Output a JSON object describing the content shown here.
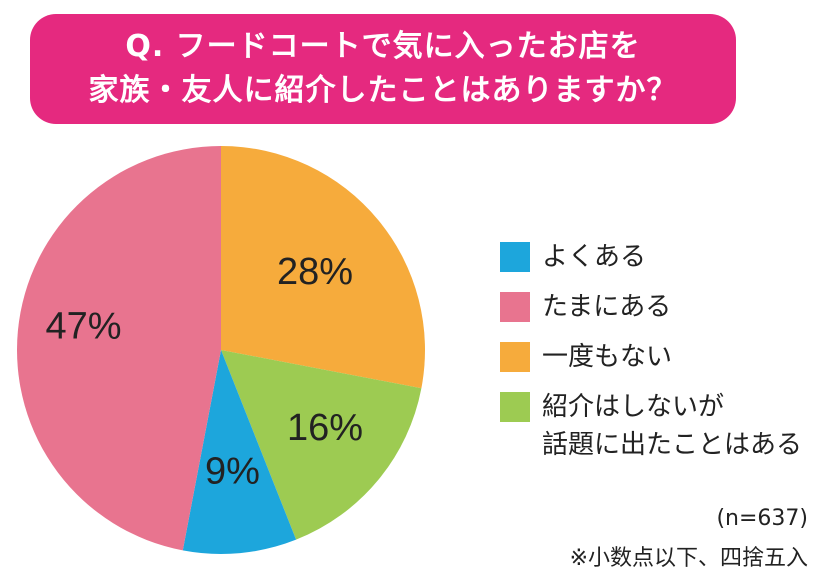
{
  "title": {
    "line1": "Q. フードコートで気に入ったお店を",
    "line2": "家族・友人に紹介したことはありますか？"
  },
  "notes": {
    "sample_size": "(n=637)",
    "rounding": "※小数点以下、四捨五入"
  },
  "colors": {
    "title_bg": "#e5297f",
    "title_text": "#ffffff"
  },
  "chart_data": {
    "type": "pie",
    "unit": "%",
    "start_angle_deg": 0,
    "direction": "clockwise",
    "legend_position": "right",
    "slices": [
      {
        "name": "一度もない",
        "value": 28,
        "label": "28%",
        "color": "#f6ab3c"
      },
      {
        "name": "紹介はしないが\n話題に出たことはある",
        "value": 16,
        "label": "16%",
        "color": "#9dcb52"
      },
      {
        "name": "よくある",
        "value": 9,
        "label": "9%",
        "color": "#1da6dc"
      },
      {
        "name": "たまにある",
        "value": 47,
        "label": "47%",
        "color": "#e8748f"
      }
    ],
    "legend": [
      {
        "label": "よくある",
        "color": "#1da6dc"
      },
      {
        "label": "たまにある",
        "color": "#e8748f"
      },
      {
        "label": "一度もない",
        "color": "#f6ab3c"
      },
      {
        "label": "紹介はしないが\n話題に出たことはある",
        "color": "#9dcb52"
      }
    ]
  }
}
